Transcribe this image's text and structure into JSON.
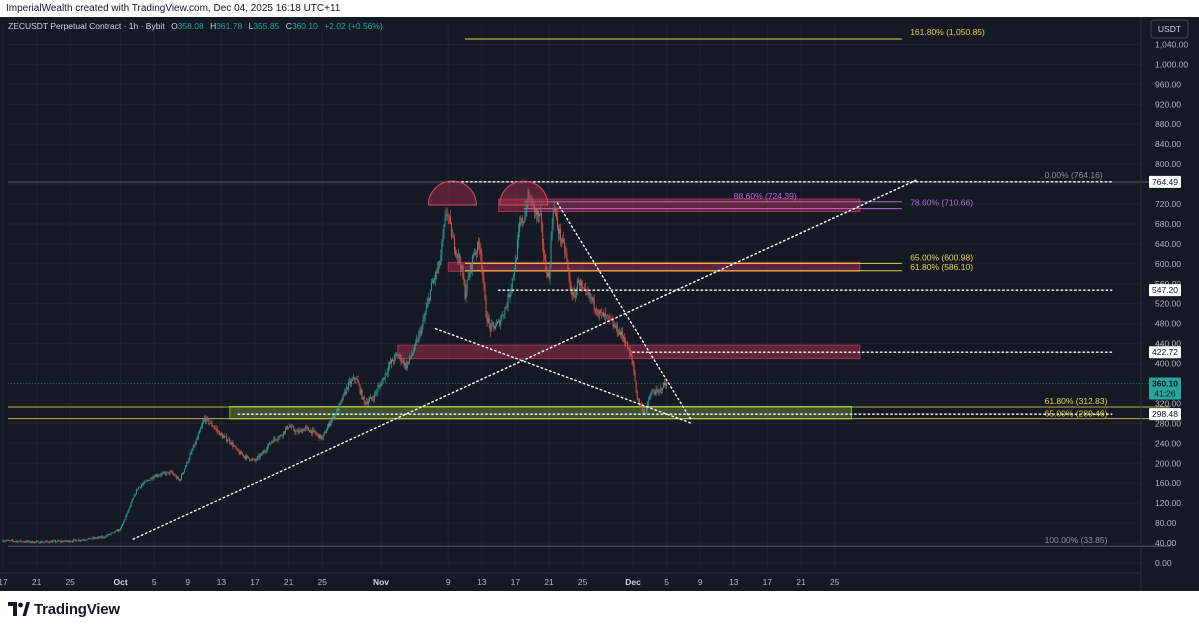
{
  "header": {
    "credit": "ImperialWealth created with TradingView.com, Dec 04, 2025 16:18 UTC+11"
  },
  "legend": {
    "symbol": "ZECUSDT Perpetual Contract · 1h · Bybit",
    "ohlc": [
      {
        "k": "O",
        "v": "358.08"
      },
      {
        "k": "H",
        "v": "361.78"
      },
      {
        "k": "L",
        "v": "355.85"
      },
      {
        "k": "C",
        "v": "360.10"
      }
    ],
    "change": "+2.02 (+0.56%)"
  },
  "currency_button": "USDT",
  "footer": {
    "brand": "TradingView"
  },
  "colors": {
    "background": "#151924",
    "up": "#26a69a",
    "down": "#ef5350",
    "fib_yellow": "#e6d24a",
    "zone_red": "#a8324f",
    "zone_green": "#7fb23f",
    "fib_purple": "#b36bd6",
    "price_tag": "#26a69a"
  },
  "chart_data": {
    "type": "candlestick",
    "symbol": "ZECUSDT",
    "timeframe": "1h",
    "ylim": [
      -12,
      1085
    ],
    "y_ticks": [
      "0.00",
      "40.00",
      "80.00",
      "120.00",
      "160.00",
      "200.00",
      "240.00",
      "280.00",
      "320.00",
      "360.00",
      "400.00",
      "440.00",
      "480.00",
      "520.00",
      "560.00",
      "600.00",
      "640.00",
      "680.00",
      "720.00",
      "760.00",
      "800.00",
      "840.00",
      "880.00",
      "920.00",
      "960.00",
      "1,000.00",
      "1,040.00"
    ],
    "y_tick_values": [
      0,
      40,
      80,
      120,
      160,
      200,
      240,
      280,
      320,
      360,
      400,
      440,
      480,
      520,
      560,
      600,
      640,
      680,
      720,
      760,
      800,
      840,
      880,
      920,
      960,
      1000,
      1040
    ],
    "x_ticks": [
      {
        "label": "17",
        "day": 0
      },
      {
        "label": "21",
        "day": 4
      },
      {
        "label": "25",
        "day": 8
      },
      {
        "label": "Oct",
        "day": 14,
        "bold": true
      },
      {
        "label": "5",
        "day": 18
      },
      {
        "label": "9",
        "day": 22
      },
      {
        "label": "13",
        "day": 26
      },
      {
        "label": "17",
        "day": 30
      },
      {
        "label": "21",
        "day": 34
      },
      {
        "label": "25",
        "day": 38
      },
      {
        "label": "Nov",
        "day": 45,
        "bold": true
      },
      {
        "label": "9",
        "day": 53
      },
      {
        "label": "13",
        "day": 57
      },
      {
        "label": "17",
        "day": 61
      },
      {
        "label": "21",
        "day": 65
      },
      {
        "label": "25",
        "day": 69
      },
      {
        "label": "Dec",
        "day": 75,
        "bold": true
      },
      {
        "label": "5",
        "day": 79
      },
      {
        "label": "9",
        "day": 83
      },
      {
        "label": "13",
        "day": 87
      },
      {
        "label": "17",
        "day": 91
      },
      {
        "label": "21",
        "day": 95
      },
      {
        "label": "25",
        "day": 99
      }
    ],
    "price_path": [
      [
        0,
        45
      ],
      [
        4,
        42
      ],
      [
        8,
        44
      ],
      [
        12,
        52
      ],
      [
        14,
        68
      ],
      [
        16,
        150
      ],
      [
        18,
        175
      ],
      [
        20,
        182
      ],
      [
        21,
        165
      ],
      [
        22,
        205
      ],
      [
        23,
        245
      ],
      [
        24,
        290
      ],
      [
        25,
        275
      ],
      [
        26,
        255
      ],
      [
        27,
        245
      ],
      [
        28,
        222
      ],
      [
        29,
        212
      ],
      [
        30,
        205
      ],
      [
        31,
        222
      ],
      [
        32,
        245
      ],
      [
        33,
        255
      ],
      [
        34,
        275
      ],
      [
        35,
        262
      ],
      [
        36,
        270
      ],
      [
        37,
        262
      ],
      [
        38,
        250
      ],
      [
        39,
        285
      ],
      [
        40,
        312
      ],
      [
        41,
        355
      ],
      [
        42,
        372
      ],
      [
        43,
        322
      ],
      [
        44,
        330
      ],
      [
        45,
        360
      ],
      [
        46,
        398
      ],
      [
        47,
        418
      ],
      [
        48,
        395
      ],
      [
        49,
        430
      ],
      [
        50,
        480
      ],
      [
        51,
        555
      ],
      [
        52,
        600
      ],
      [
        52.8,
        710
      ],
      [
        53.5,
        650
      ],
      [
        54.5,
        600
      ],
      [
        55,
        540
      ],
      [
        56,
        620
      ],
      [
        56.8,
        640
      ],
      [
        57.5,
        500
      ],
      [
        58,
        470
      ],
      [
        59,
        480
      ],
      [
        60,
        520
      ],
      [
        61,
        600
      ],
      [
        61.5,
        675
      ],
      [
        62,
        690
      ],
      [
        62.5,
        735
      ],
      [
        63,
        720
      ],
      [
        63.5,
        700
      ],
      [
        64,
        690
      ],
      [
        64.5,
        600
      ],
      [
        65,
        570
      ],
      [
        65.5,
        720
      ],
      [
        66,
        675
      ],
      [
        67,
        620
      ],
      [
        67.5,
        555
      ],
      [
        68,
        530
      ],
      [
        68.5,
        570
      ],
      [
        69,
        545
      ],
      [
        70,
        530
      ],
      [
        71,
        500
      ],
      [
        72,
        490
      ],
      [
        73,
        470
      ],
      [
        74,
        450
      ],
      [
        75,
        400
      ],
      [
        75.5,
        330
      ],
      [
        76,
        312
      ],
      [
        76.5,
        300
      ],
      [
        77,
        335
      ],
      [
        77.5,
        345
      ],
      [
        78,
        340
      ],
      [
        78.5,
        355
      ],
      [
        79,
        360
      ]
    ],
    "last_price": "360.10",
    "countdown": "41:26",
    "price_tags": [
      "764.49",
      "547.20",
      "422.72",
      "298.48"
    ],
    "price_tag_values": [
      764.49,
      547.2,
      422.72,
      298.48
    ],
    "fib_labels": [
      {
        "text": "161.80% (1,050.85)",
        "value": 1050.85,
        "color": "#e6d24a"
      },
      {
        "text": "0.00% (764.16)",
        "value": 764.16,
        "color": "#8a8e99"
      },
      {
        "text": "88.60% (724.39)",
        "value": 724.39,
        "color": "#b36bd6"
      },
      {
        "text": "78.60% (710.66)",
        "value": 710.66,
        "color": "#b36bd6"
      },
      {
        "text": "65.00% (600.98)",
        "value": 600.98,
        "color": "#e6d24a"
      },
      {
        "text": "61.80% (586.10)",
        "value": 586.1,
        "color": "#e6d24a"
      },
      {
        "text": "61.80% (312.83)",
        "value": 312.83,
        "color": "#e6d24a"
      },
      {
        "text": "65.00% (289.46)",
        "value": 289.46,
        "color": "#e6d24a"
      },
      {
        "text": "100.00% (33.85)",
        "value": 33.85,
        "color": "#8a8e99"
      }
    ],
    "zones": [
      {
        "name": "supply-zone-top",
        "kind": "red",
        "day1": 59,
        "day2": 102,
        "low": 705,
        "high": 730
      },
      {
        "name": "supply-zone-fib",
        "kind": "red",
        "day1": 53,
        "day2": 102,
        "low": 585,
        "high": 603
      },
      {
        "name": "supply-zone-mid",
        "kind": "red",
        "day1": 47,
        "day2": 102,
        "low": 410,
        "high": 437
      },
      {
        "name": "demand-zone",
        "kind": "green",
        "day1": 27,
        "day2": 101,
        "low": 289,
        "high": 314
      }
    ],
    "lines": [
      {
        "name": "rising-trendline",
        "day1": 15.5,
        "v1": 48,
        "day2": 109,
        "v2": 770
      },
      {
        "name": "falling-trendline",
        "day1": 66,
        "v1": 722,
        "day2": 82,
        "v2": 285
      },
      {
        "name": "descending-trendline",
        "day1": 51.5,
        "v1": 470,
        "day2": 82,
        "v2": 280
      },
      {
        "name": "level-764",
        "day1": 53,
        "v1": 764.49,
        "day2": 132,
        "v2": 764.49
      },
      {
        "name": "level-547",
        "day1": 59,
        "v1": 547.2,
        "day2": 132,
        "v2": 547.2
      },
      {
        "name": "level-422",
        "day1": 75,
        "v1": 422.72,
        "day2": 132,
        "v2": 422.72
      },
      {
        "name": "level-298",
        "day1": 28,
        "v1": 298.48,
        "day2": 132,
        "v2": 298.48
      }
    ],
    "arcs": [
      {
        "name": "double-top-arc-left",
        "day": 53.5,
        "value": 718
      },
      {
        "name": "double-top-arc-right",
        "day": 62,
        "value": 718
      }
    ]
  }
}
